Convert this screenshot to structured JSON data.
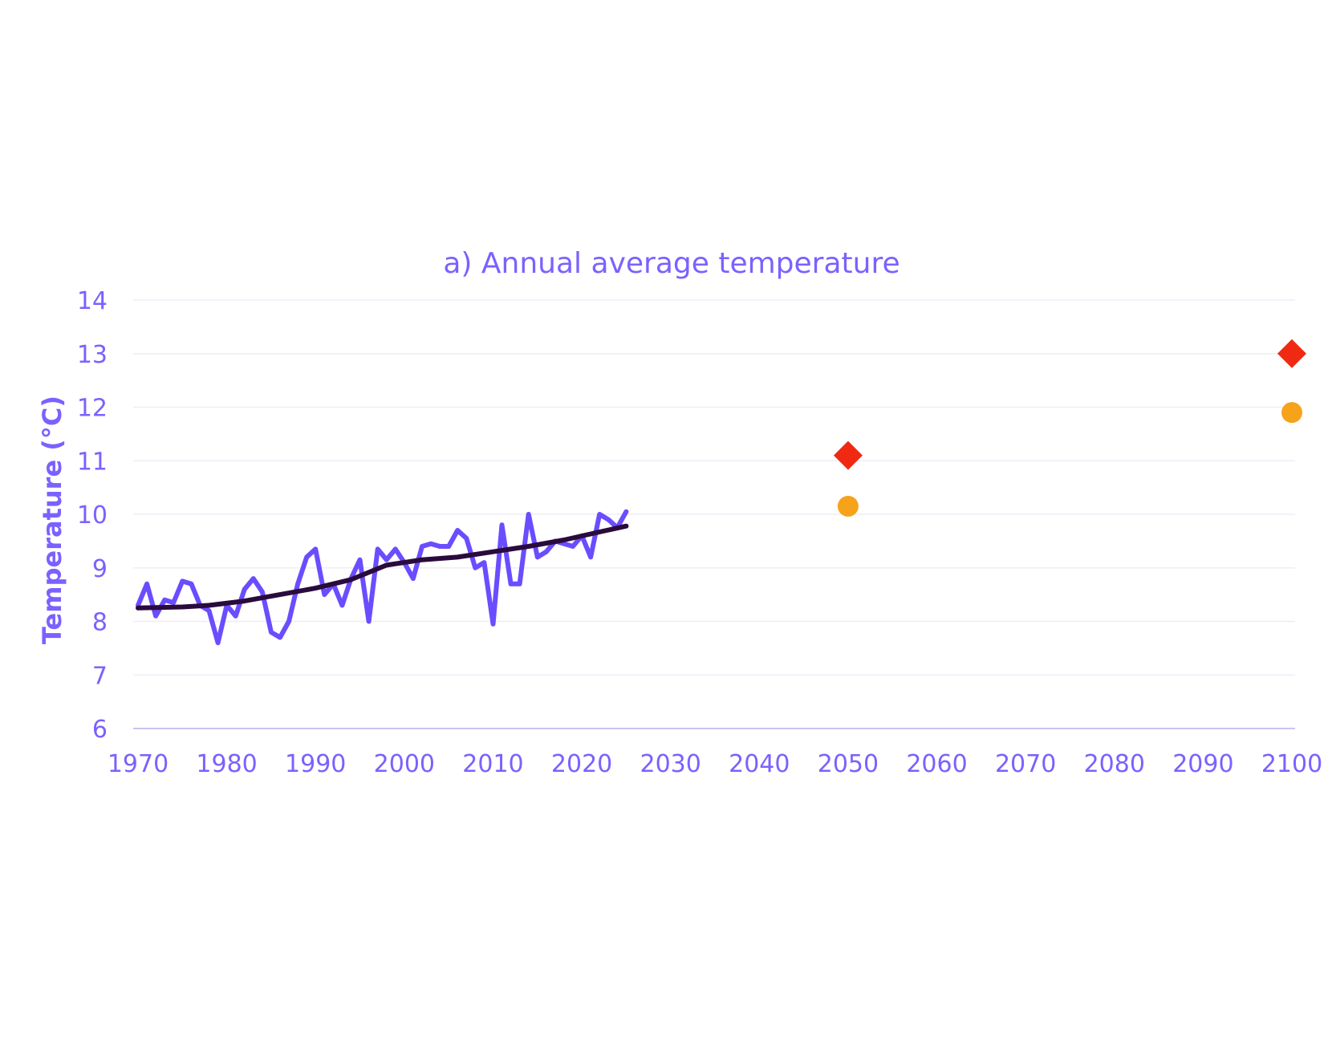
{
  "colors": {
    "text": "#7B61FF",
    "observed_line": "#6A4DFF",
    "trend_line": "#2A0B3D",
    "gridline": "#EEEEF6",
    "baseline": "#C9C3F2",
    "diamond": "#F02A12",
    "circle": "#F7A21B"
  },
  "chart_data": {
    "type": "line",
    "title": "a) Annual average temperature",
    "xlabel": "",
    "ylabel": "Temperature (°C)",
    "xlim": [
      1970,
      2100
    ],
    "ylim": [
      6,
      14
    ],
    "x_ticks": [
      1970,
      1980,
      1990,
      2000,
      2010,
      2020,
      2030,
      2040,
      2050,
      2060,
      2070,
      2080,
      2090,
      2100
    ],
    "y_ticks": [
      6,
      7,
      8,
      9,
      10,
      11,
      12,
      13,
      14
    ],
    "grid": true,
    "series": [
      {
        "kind": "line",
        "style": "observed",
        "x": [
          1970,
          1971,
          1972,
          1973,
          1974,
          1975,
          1976,
          1977,
          1978,
          1979,
          1980,
          1981,
          1982,
          1983,
          1984,
          1985,
          1986,
          1987,
          1988,
          1989,
          1990,
          1991,
          1992,
          1993,
          1994,
          1995,
          1996,
          1997,
          1998,
          1999,
          2000,
          2001,
          2002,
          2003,
          2004,
          2005,
          2006,
          2007,
          2008,
          2009,
          2010,
          2011,
          2012,
          2013,
          2014,
          2015,
          2016,
          2017,
          2018,
          2019,
          2020,
          2021,
          2022,
          2023,
          2024,
          2025
        ],
        "y": [
          8.3,
          8.7,
          8.1,
          8.4,
          8.35,
          8.75,
          8.7,
          8.3,
          8.2,
          7.6,
          8.3,
          8.1,
          8.6,
          8.8,
          8.55,
          7.8,
          7.7,
          8.0,
          8.7,
          9.2,
          9.35,
          8.5,
          8.7,
          8.3,
          8.8,
          9.15,
          8.0,
          9.35,
          9.15,
          9.35,
          9.1,
          8.8,
          9.4,
          9.45,
          9.4,
          9.4,
          9.7,
          9.55,
          9.0,
          9.1,
          7.95,
          9.8,
          8.7,
          8.7,
          10.0,
          9.2,
          9.3,
          9.5,
          9.45,
          9.4,
          9.6,
          9.2,
          10.0,
          9.9,
          9.75,
          10.05
        ]
      },
      {
        "kind": "line",
        "style": "trend",
        "x": [
          1970,
          1975,
          1978,
          1982,
          1986,
          1990,
          1994,
          1998,
          2002,
          2006,
          2010,
          2014,
          2018,
          2022,
          2025
        ],
        "y": [
          8.25,
          8.27,
          8.3,
          8.38,
          8.5,
          8.62,
          8.78,
          9.05,
          9.15,
          9.2,
          9.3,
          9.4,
          9.52,
          9.67,
          9.78
        ]
      },
      {
        "kind": "scatter",
        "marker": "diamond",
        "x": [
          2050,
          2100
        ],
        "y": [
          11.1,
          13.0
        ]
      },
      {
        "kind": "scatter",
        "marker": "circle",
        "x": [
          2050,
          2100
        ],
        "y": [
          10.15,
          11.9
        ]
      }
    ]
  }
}
